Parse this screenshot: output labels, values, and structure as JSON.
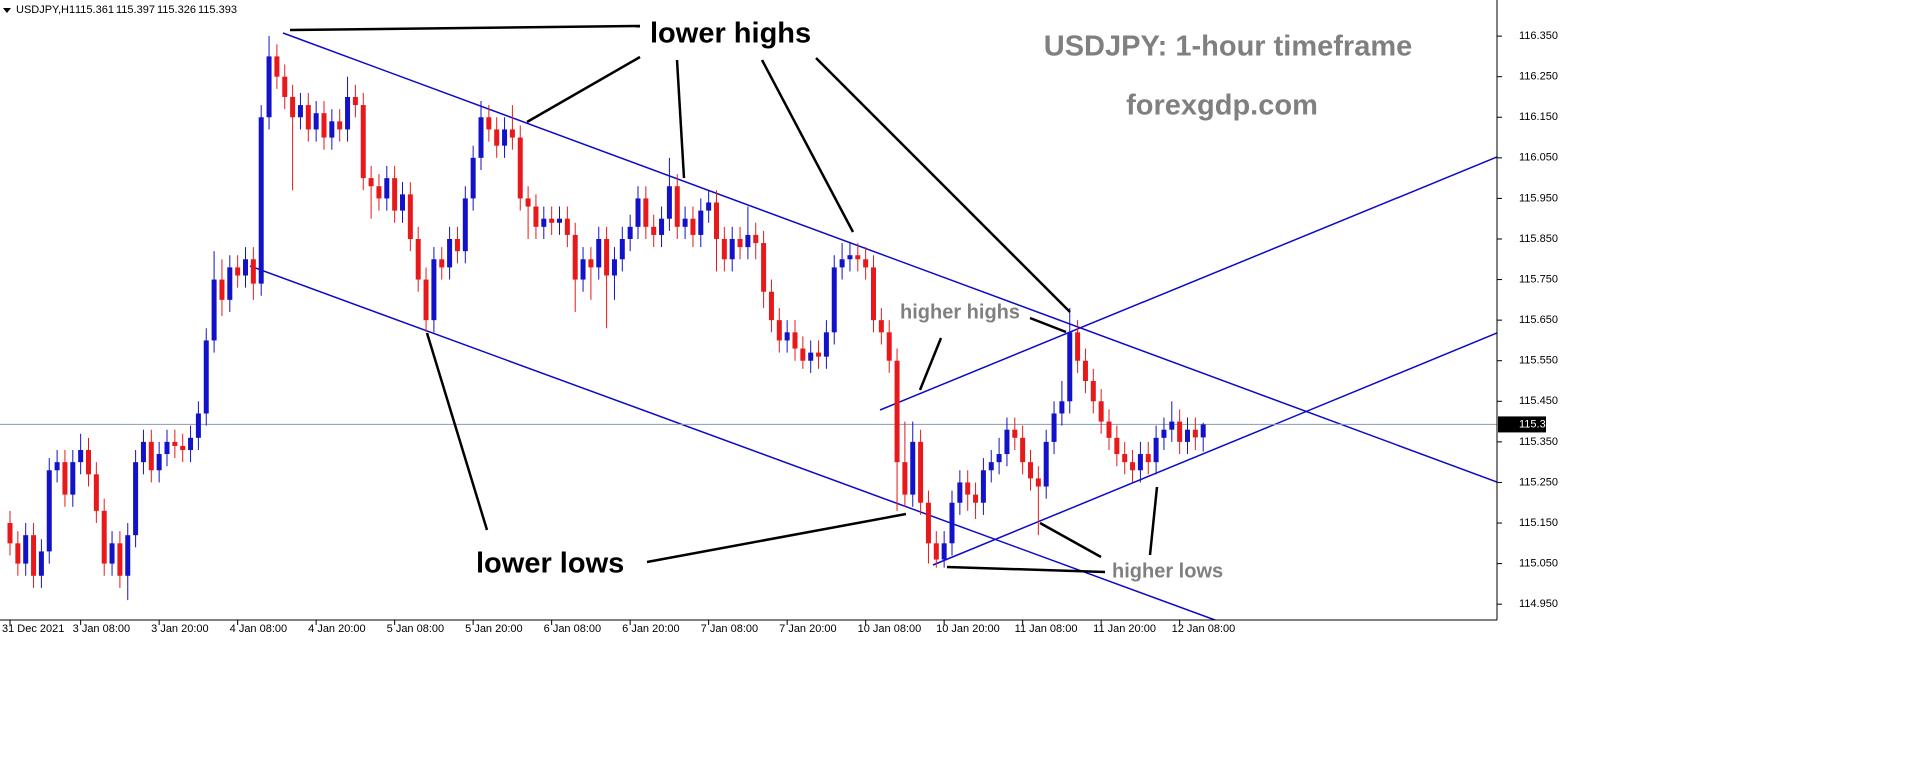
{
  "chart_data": {
    "type": "candlestick",
    "symbol": "USDJPY,H1",
    "title": "USDJPY: 1-hour timeframe",
    "subtitle": "forexgdp.com",
    "annotations": [
      "lower highs",
      "lower lows",
      "higher highs",
      "higher lows"
    ],
    "up_color": "#1212c8",
    "down_color": "#e8191b",
    "ylim": [
      114.911,
      116.439
    ],
    "yticks": [
      {
        "value": 116.35,
        "label": "116.350"
      },
      {
        "value": 116.25,
        "label": "116.250"
      },
      {
        "value": 116.15,
        "label": "116.150"
      },
      {
        "value": 116.05,
        "label": "116.050"
      },
      {
        "value": 115.95,
        "label": "115.950"
      },
      {
        "value": 115.85,
        "label": "115.850"
      },
      {
        "value": 115.75,
        "label": "115.750"
      },
      {
        "value": 115.65,
        "label": "115.650"
      },
      {
        "value": 115.55,
        "label": "115.550"
      },
      {
        "value": 115.45,
        "label": "115.450"
      },
      {
        "value": 115.35,
        "label": "115.350"
      },
      {
        "value": 115.25,
        "label": "115.250"
      },
      {
        "value": 115.15,
        "label": "115.150"
      },
      {
        "value": 115.05,
        "label": "115.050"
      },
      {
        "value": 114.95,
        "label": "114.950"
      }
    ],
    "categories": [
      "31 Dec 2021",
      null,
      null,
      null,
      null,
      null,
      null,
      null,
      null,
      "3 Jan 08:00",
      null,
      null,
      null,
      null,
      null,
      null,
      null,
      null,
      null,
      "3 Jan 20:00",
      null,
      null,
      null,
      null,
      null,
      null,
      null,
      null,
      null,
      "4 Jan 08:00",
      null,
      null,
      null,
      null,
      null,
      null,
      null,
      null,
      null,
      "4 Jan 20:00",
      null,
      null,
      null,
      null,
      null,
      null,
      null,
      null,
      null,
      "5 Jan 08:00",
      null,
      null,
      null,
      null,
      null,
      null,
      null,
      null,
      null,
      "5 Jan 20:00",
      null,
      null,
      null,
      null,
      null,
      null,
      null,
      null,
      null,
      "6 Jan 08:00",
      null,
      null,
      null,
      null,
      null,
      null,
      null,
      null,
      null,
      "6 Jan 20:00",
      null,
      null,
      null,
      null,
      null,
      null,
      null,
      null,
      null,
      "7 Jan 08:00",
      null,
      null,
      null,
      null,
      null,
      null,
      null,
      null,
      null,
      "7 Jan 20:00",
      null,
      null,
      null,
      null,
      null,
      null,
      null,
      null,
      null,
      "10 Jan 08:00",
      null,
      null,
      null,
      null,
      null,
      null,
      null,
      null,
      null,
      "10 Jan 20:00",
      null,
      null,
      null,
      null,
      null,
      null,
      null,
      null,
      null,
      "11 Jan 08:00",
      null,
      null,
      null,
      null,
      null,
      null,
      null,
      null,
      null,
      "11 Jan 20:00",
      null,
      null,
      null,
      null,
      null,
      null,
      null,
      null,
      null,
      "12 Jan 08:00",
      null,
      null,
      null
    ],
    "ohlc": [
      [
        115.15,
        115.18,
        115.07,
        115.1
      ],
      [
        115.1,
        115.13,
        115.02,
        115.05
      ],
      [
        115.05,
        115.15,
        115.02,
        115.12
      ],
      [
        115.12,
        115.15,
        114.99,
        115.02
      ],
      [
        115.02,
        115.11,
        114.99,
        115.08
      ],
      [
        115.08,
        115.31,
        115.05,
        115.28
      ],
      [
        115.28,
        115.33,
        115.25,
        115.3
      ],
      [
        115.3,
        115.33,
        115.19,
        115.22
      ],
      [
        115.22,
        115.33,
        115.19,
        115.3
      ],
      [
        115.3,
        115.37,
        115.27,
        115.33
      ],
      [
        115.33,
        115.36,
        115.24,
        115.27
      ],
      [
        115.27,
        115.3,
        115.15,
        115.18
      ],
      [
        115.18,
        115.21,
        115.02,
        115.05
      ],
      [
        115.05,
        115.13,
        115.02,
        115.1
      ],
      [
        115.1,
        115.13,
        114.99,
        115.02
      ],
      [
        115.02,
        115.15,
        114.96,
        115.12
      ],
      [
        115.12,
        115.33,
        115.09,
        115.3
      ],
      [
        115.3,
        115.38,
        115.27,
        115.35
      ],
      [
        115.35,
        115.38,
        115.25,
        115.28
      ],
      [
        115.28,
        115.35,
        115.25,
        115.32
      ],
      [
        115.32,
        115.38,
        115.29,
        115.35
      ],
      [
        115.35,
        115.38,
        115.31,
        115.34
      ],
      [
        115.34,
        115.37,
        115.3,
        115.33
      ],
      [
        115.33,
        115.39,
        115.3,
        115.36
      ],
      [
        115.36,
        115.45,
        115.33,
        115.42
      ],
      [
        115.42,
        115.63,
        115.39,
        115.6
      ],
      [
        115.6,
        115.82,
        115.57,
        115.75
      ],
      [
        115.75,
        115.8,
        115.66,
        115.7
      ],
      [
        115.7,
        115.81,
        115.67,
        115.78
      ],
      [
        115.78,
        115.81,
        115.73,
        115.76
      ],
      [
        115.76,
        115.83,
        115.73,
        115.8
      ],
      [
        115.8,
        115.83,
        115.7,
        115.74
      ],
      [
        115.74,
        116.18,
        115.71,
        116.15
      ],
      [
        116.15,
        116.35,
        116.12,
        116.3
      ],
      [
        116.3,
        116.33,
        116.22,
        116.25
      ],
      [
        116.25,
        116.28,
        116.17,
        116.2
      ],
      [
        116.2,
        116.23,
        115.97,
        116.15
      ],
      [
        116.15,
        116.21,
        116.12,
        116.18
      ],
      [
        116.18,
        116.21,
        116.09,
        116.12
      ],
      [
        116.12,
        116.19,
        116.09,
        116.16
      ],
      [
        116.16,
        116.19,
        116.07,
        116.1
      ],
      [
        116.1,
        116.17,
        116.07,
        116.14
      ],
      [
        116.14,
        116.17,
        116.09,
        116.12
      ],
      [
        116.12,
        116.25,
        116.09,
        116.2
      ],
      [
        116.2,
        116.23,
        116.15,
        116.18
      ],
      [
        116.18,
        116.21,
        115.97,
        116.0
      ],
      [
        116.0,
        116.03,
        115.9,
        115.98
      ],
      [
        115.98,
        116.01,
        115.92,
        115.95
      ],
      [
        115.95,
        116.03,
        115.92,
        116.0
      ],
      [
        116.0,
        116.03,
        115.89,
        115.92
      ],
      [
        115.92,
        115.99,
        115.89,
        115.96
      ],
      [
        115.96,
        115.99,
        115.82,
        115.85
      ],
      [
        115.85,
        115.88,
        115.72,
        115.75
      ],
      [
        115.75,
        115.78,
        115.62,
        115.65
      ],
      [
        115.65,
        115.83,
        115.62,
        115.8
      ],
      [
        115.8,
        115.83,
        115.75,
        115.78
      ],
      [
        115.78,
        115.88,
        115.75,
        115.85
      ],
      [
        115.85,
        115.88,
        115.79,
        115.82
      ],
      [
        115.82,
        115.98,
        115.79,
        115.95
      ],
      [
        115.95,
        116.08,
        115.92,
        116.05
      ],
      [
        116.05,
        116.19,
        116.02,
        116.15
      ],
      [
        116.15,
        116.18,
        116.09,
        116.12
      ],
      [
        116.12,
        116.15,
        116.05,
        116.08
      ],
      [
        116.08,
        116.15,
        116.05,
        116.12
      ],
      [
        116.12,
        116.18,
        116.07,
        116.1
      ],
      [
        116.1,
        116.13,
        115.92,
        115.95
      ],
      [
        115.95,
        115.98,
        115.85,
        115.93
      ],
      [
        115.93,
        115.96,
        115.85,
        115.88
      ],
      [
        115.88,
        115.93,
        115.85,
        115.9
      ],
      [
        115.9,
        115.93,
        115.86,
        115.89
      ],
      [
        115.89,
        115.93,
        115.86,
        115.9
      ],
      [
        115.9,
        115.93,
        115.83,
        115.86
      ],
      [
        115.86,
        115.89,
        115.67,
        115.75
      ],
      [
        115.75,
        115.83,
        115.72,
        115.8
      ],
      [
        115.8,
        115.83,
        115.7,
        115.78
      ],
      [
        115.78,
        115.88,
        115.75,
        115.85
      ],
      [
        115.85,
        115.88,
        115.63,
        115.76
      ],
      [
        115.76,
        115.83,
        115.7,
        115.8
      ],
      [
        115.8,
        115.88,
        115.77,
        115.85
      ],
      [
        115.85,
        115.91,
        115.82,
        115.88
      ],
      [
        115.88,
        115.98,
        115.85,
        115.95
      ],
      [
        115.95,
        115.98,
        115.85,
        115.88
      ],
      [
        115.88,
        115.91,
        115.83,
        115.86
      ],
      [
        115.86,
        115.93,
        115.83,
        115.9
      ],
      [
        115.9,
        116.05,
        115.87,
        115.98
      ],
      [
        115.98,
        116.01,
        115.85,
        115.88
      ],
      [
        115.88,
        115.93,
        115.85,
        115.9
      ],
      [
        115.9,
        115.93,
        115.83,
        115.86
      ],
      [
        115.86,
        115.95,
        115.83,
        115.92
      ],
      [
        115.92,
        115.97,
        115.89,
        115.94
      ],
      [
        115.94,
        115.97,
        115.77,
        115.85
      ],
      [
        115.85,
        115.88,
        115.77,
        115.8
      ],
      [
        115.8,
        115.88,
        115.77,
        115.85
      ],
      [
        115.85,
        115.88,
        115.8,
        115.83
      ],
      [
        115.83,
        115.93,
        115.8,
        115.86
      ],
      [
        115.86,
        115.89,
        115.8,
        115.84
      ],
      [
        115.84,
        115.87,
        115.68,
        115.72
      ],
      [
        115.72,
        115.75,
        115.62,
        115.65
      ],
      [
        115.65,
        115.68,
        115.57,
        115.6
      ],
      [
        115.6,
        115.65,
        115.57,
        115.62
      ],
      [
        115.62,
        115.65,
        115.55,
        115.58
      ],
      [
        115.58,
        115.61,
        115.53,
        115.55
      ],
      [
        115.55,
        115.6,
        115.52,
        115.57
      ],
      [
        115.57,
        115.6,
        115.53,
        115.56
      ],
      [
        115.56,
        115.65,
        115.53,
        115.62
      ],
      [
        115.62,
        115.81,
        115.59,
        115.78
      ],
      [
        115.78,
        115.84,
        115.75,
        115.8
      ],
      [
        115.8,
        115.84,
        115.77,
        115.81
      ],
      [
        115.81,
        115.84,
        115.77,
        115.8
      ],
      [
        115.8,
        115.83,
        115.75,
        115.78
      ],
      [
        115.78,
        115.81,
        115.62,
        115.65
      ],
      [
        115.65,
        115.68,
        115.59,
        115.62
      ],
      [
        115.62,
        115.65,
        115.52,
        115.55
      ],
      [
        115.55,
        115.58,
        115.18,
        115.3
      ],
      [
        115.3,
        115.4,
        115.19,
        115.22
      ],
      [
        115.22,
        115.4,
        115.19,
        115.35
      ],
      [
        115.35,
        115.38,
        115.17,
        115.2
      ],
      [
        115.2,
        115.23,
        115.05,
        115.1
      ],
      [
        115.1,
        115.13,
        115.04,
        115.06
      ],
      [
        115.06,
        115.13,
        115.04,
        115.1
      ],
      [
        115.1,
        115.23,
        115.07,
        115.2
      ],
      [
        115.2,
        115.28,
        115.17,
        115.25
      ],
      [
        115.25,
        115.28,
        115.18,
        115.22
      ],
      [
        115.22,
        115.25,
        115.16,
        115.2
      ],
      [
        115.2,
        115.31,
        115.17,
        115.28
      ],
      [
        115.28,
        115.33,
        115.25,
        115.3
      ],
      [
        115.3,
        115.36,
        115.27,
        115.32
      ],
      [
        115.32,
        115.41,
        115.29,
        115.38
      ],
      [
        115.38,
        115.41,
        115.33,
        115.36
      ],
      [
        115.36,
        115.39,
        115.27,
        115.3
      ],
      [
        115.3,
        115.33,
        115.23,
        115.26
      ],
      [
        115.26,
        115.29,
        115.12,
        115.24
      ],
      [
        115.24,
        115.38,
        115.21,
        115.35
      ],
      [
        115.35,
        115.45,
        115.32,
        115.42
      ],
      [
        115.42,
        115.5,
        115.39,
        115.45
      ],
      [
        115.45,
        115.68,
        115.42,
        115.62
      ],
      [
        115.62,
        115.65,
        115.52,
        115.55
      ],
      [
        115.55,
        115.58,
        115.47,
        115.5
      ],
      [
        115.5,
        115.53,
        115.42,
        115.45
      ],
      [
        115.45,
        115.48,
        115.37,
        115.4
      ],
      [
        115.4,
        115.43,
        115.33,
        115.36
      ],
      [
        115.36,
        115.39,
        115.29,
        115.32
      ],
      [
        115.32,
        115.35,
        115.27,
        115.3
      ],
      [
        115.3,
        115.33,
        115.25,
        115.28
      ],
      [
        115.28,
        115.35,
        115.25,
        115.32
      ],
      [
        115.32,
        115.35,
        115.27,
        115.3
      ],
      [
        115.3,
        115.39,
        115.27,
        115.36
      ],
      [
        115.36,
        115.41,
        115.33,
        115.38
      ],
      [
        115.38,
        115.45,
        115.35,
        115.4
      ],
      [
        115.4,
        115.43,
        115.32,
        115.35
      ],
      [
        115.35,
        115.41,
        115.32,
        115.38
      ],
      [
        115.38,
        115.41,
        115.33,
        115.361
      ],
      [
        115.361,
        115.397,
        115.326,
        115.393
      ]
    ]
  }
}
